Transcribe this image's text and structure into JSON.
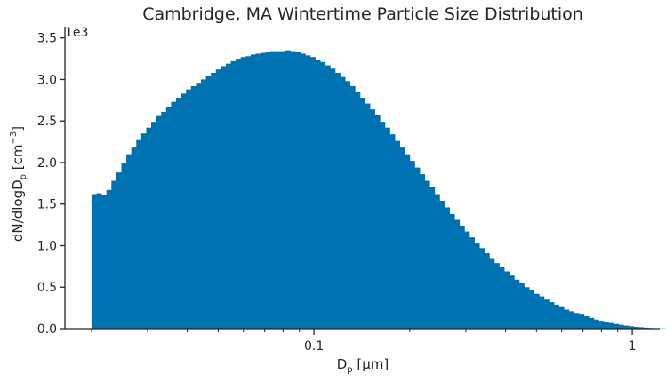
{
  "chart_data": {
    "type": "bar",
    "title": "Cambridge, MA Wintertime Particle Size Distribution",
    "xlabel": {
      "main": "D",
      "sub": "p",
      "rest": " [μm]"
    },
    "ylabel": {
      "main": "dN/dlogD",
      "sub": "p",
      "rest": " [cm",
      "sup": "−3",
      "close": "]"
    },
    "x_scale": "log",
    "xlim": [
      0.0165,
      1.22
    ],
    "ylim": [
      0,
      3550
    ],
    "y_multiplier_label": "1e3",
    "y_ticks": [
      0,
      500,
      1000,
      1500,
      2000,
      2500,
      3000,
      3500
    ],
    "y_tick_labels": [
      "0.0",
      "0.5",
      "1.0",
      "1.5",
      "2.0",
      "2.5",
      "3.0",
      "3.5"
    ],
    "x_major_ticks": [
      0.1,
      1
    ],
    "x_major_tick_labels": [
      "0.1",
      "1"
    ],
    "x_minor_ticks": [
      0.02,
      0.03,
      0.04,
      0.05,
      0.06,
      0.07,
      0.08,
      0.09,
      0.2,
      0.3,
      0.4,
      0.5,
      0.6,
      0.7,
      0.8,
      0.9
    ],
    "bar_color": "#0072B2",
    "bin_edges_start": 0.02,
    "bins_per_decade": 64,
    "values": [
      1620,
      1630,
      1610,
      1670,
      1780,
      1880,
      2000,
      2100,
      2180,
      2270,
      2350,
      2420,
      2490,
      2560,
      2610,
      2670,
      2730,
      2780,
      2830,
      2880,
      2920,
      2960,
      3000,
      3040,
      3080,
      3120,
      3160,
      3190,
      3220,
      3250,
      3270,
      3280,
      3300,
      3310,
      3320,
      3330,
      3340,
      3340,
      3340,
      3350,
      3340,
      3330,
      3310,
      3290,
      3270,
      3240,
      3210,
      3170,
      3130,
      3080,
      3030,
      2980,
      2920,
      2850,
      2780,
      2710,
      2640,
      2570,
      2490,
      2420,
      2340,
      2260,
      2180,
      2100,
      2020,
      1940,
      1860,
      1780,
      1700,
      1620,
      1540,
      1460,
      1380,
      1310,
      1240,
      1170,
      1100,
      1030,
      970,
      910,
      850,
      790,
      740,
      690,
      640,
      590,
      550,
      500,
      460,
      420,
      390,
      350,
      320,
      290,
      260,
      230,
      210,
      190,
      170,
      150,
      130,
      110,
      95,
      80,
      68,
      56,
      46,
      37,
      29,
      22,
      17,
      12,
      8,
      5,
      3,
      2,
      1
    ]
  }
}
